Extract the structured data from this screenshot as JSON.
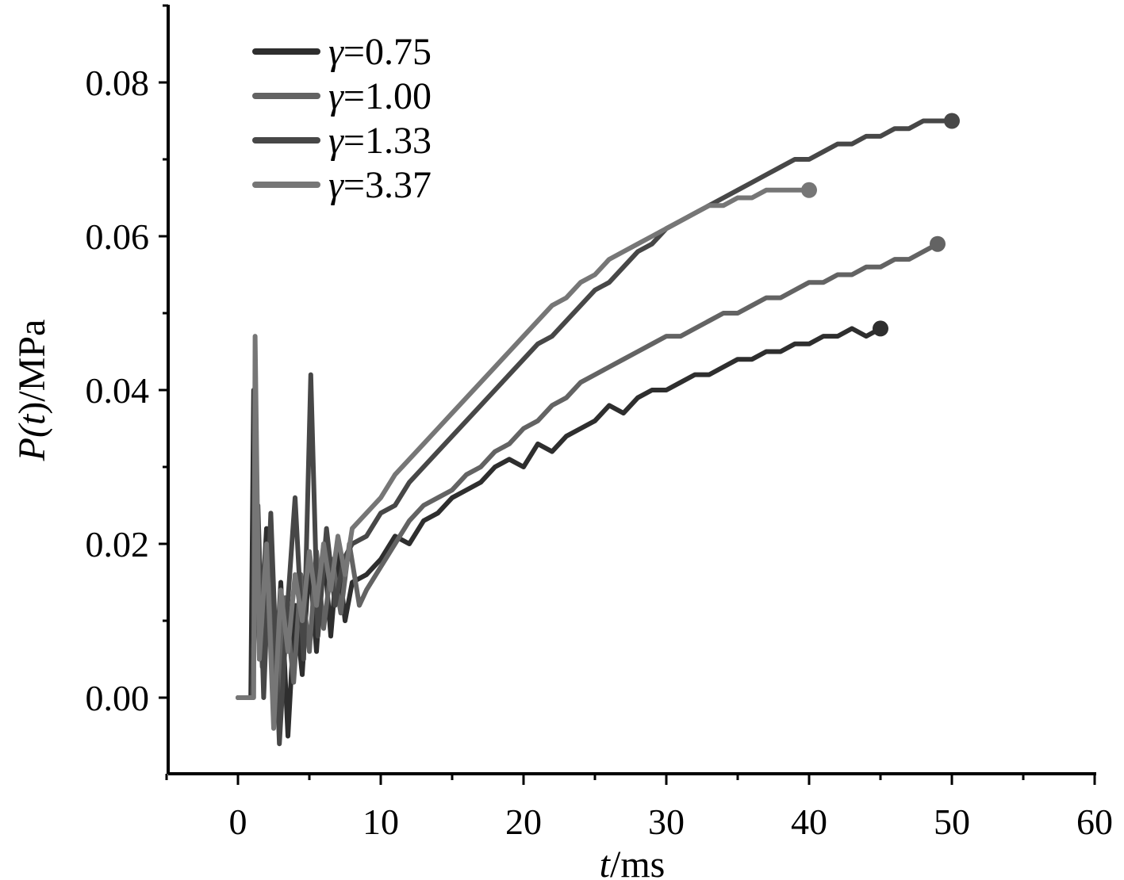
{
  "chart_data": {
    "type": "line",
    "title": "",
    "xlabel": {
      "var": "t",
      "unit": "/ms"
    },
    "ylabel": {
      "prefix": "P(",
      "var": "t",
      "suffix": ")/MPa"
    },
    "xlim": [
      -5,
      60
    ],
    "ylim": [
      -0.01,
      0.09
    ],
    "x_ticks": [
      0,
      10,
      20,
      30,
      40,
      50,
      60
    ],
    "x_tick_labels": [
      "0",
      "10",
      "20",
      "30",
      "40",
      "50",
      "60"
    ],
    "y_ticks": [
      0.0,
      0.02,
      0.04,
      0.06,
      0.08
    ],
    "y_tick_labels": [
      "0.00",
      "0.02",
      "0.04",
      "0.06",
      "0.08"
    ],
    "legend_position": "top-left",
    "grid": false,
    "series": [
      {
        "name": "γ=0.75",
        "symbol": "γ",
        "value": "=0.75",
        "color": "#2e2e2e",
        "x": [
          0,
          0.9,
          1.1,
          1.5,
          2,
          2.5,
          3,
          3.5,
          4,
          4.5,
          5,
          5.5,
          6,
          6.5,
          7,
          7.5,
          8,
          9,
          10,
          11,
          12,
          13,
          14,
          15,
          16,
          17,
          18,
          19,
          20,
          21,
          22,
          23,
          24,
          25,
          26,
          27,
          28,
          29,
          30,
          31,
          32,
          33,
          34,
          35,
          36,
          37,
          38,
          39,
          40,
          41,
          42,
          43,
          44,
          45
        ],
        "y": [
          0,
          0,
          0.04,
          0.005,
          0.022,
          -0.002,
          0.015,
          -0.005,
          0.012,
          0.003,
          0.018,
          0.006,
          0.02,
          0.008,
          0.019,
          0.01,
          0.015,
          0.016,
          0.018,
          0.021,
          0.02,
          0.023,
          0.024,
          0.026,
          0.027,
          0.028,
          0.03,
          0.031,
          0.03,
          0.033,
          0.032,
          0.034,
          0.035,
          0.036,
          0.038,
          0.037,
          0.039,
          0.04,
          0.04,
          0.041,
          0.042,
          0.042,
          0.043,
          0.044,
          0.044,
          0.045,
          0.045,
          0.046,
          0.046,
          0.047,
          0.047,
          0.048,
          0.047,
          0.048
        ]
      },
      {
        "name": "γ=1.00",
        "symbol": "γ",
        "value": "=1.00",
        "color": "#636363",
        "x": [
          0,
          1,
          1.3,
          1.7,
          2.2,
          2.8,
          3.3,
          3.9,
          4.4,
          5,
          5.5,
          6,
          6.6,
          7.2,
          7.8,
          8.5,
          9,
          10,
          11,
          12,
          13,
          14,
          15,
          16,
          17,
          18,
          19,
          20,
          21,
          22,
          23,
          24,
          25,
          26,
          27,
          28,
          29,
          30,
          31,
          32,
          33,
          34,
          35,
          36,
          37,
          38,
          39,
          40,
          41,
          42,
          43,
          44,
          45,
          46,
          47,
          48,
          49
        ],
        "y": [
          0,
          0,
          0.02,
          0.004,
          0.017,
          -0.003,
          0.013,
          0.002,
          0.016,
          0.006,
          0.019,
          0.009,
          0.018,
          0.011,
          0.02,
          0.012,
          0.014,
          0.017,
          0.02,
          0.023,
          0.025,
          0.026,
          0.027,
          0.029,
          0.03,
          0.032,
          0.033,
          0.035,
          0.036,
          0.038,
          0.039,
          0.041,
          0.042,
          0.043,
          0.044,
          0.045,
          0.046,
          0.047,
          0.047,
          0.048,
          0.049,
          0.05,
          0.05,
          0.051,
          0.052,
          0.052,
          0.053,
          0.054,
          0.054,
          0.055,
          0.055,
          0.056,
          0.056,
          0.057,
          0.057,
          0.058,
          0.059
        ]
      },
      {
        "name": "γ=1.33",
        "symbol": "γ",
        "value": "=1.33",
        "color": "#474747",
        "x": [
          0,
          1,
          1.4,
          1.8,
          2.3,
          2.9,
          3.4,
          4,
          4.6,
          5.1,
          5.6,
          6.2,
          6.8,
          7.4,
          8,
          9,
          10,
          11,
          12,
          13,
          14,
          15,
          16,
          17,
          18,
          19,
          20,
          21,
          22,
          23,
          24,
          25,
          26,
          27,
          28,
          29,
          30,
          31,
          32,
          33,
          34,
          35,
          36,
          37,
          38,
          39,
          40,
          41,
          42,
          43,
          44,
          45,
          46,
          47,
          48,
          49,
          50
        ],
        "y": [
          0,
          0,
          0.025,
          0.0,
          0.024,
          -0.006,
          0.01,
          0.026,
          0.005,
          0.042,
          0.008,
          0.022,
          0.012,
          0.018,
          0.02,
          0.021,
          0.024,
          0.025,
          0.028,
          0.03,
          0.032,
          0.034,
          0.036,
          0.038,
          0.04,
          0.042,
          0.044,
          0.046,
          0.047,
          0.049,
          0.051,
          0.053,
          0.054,
          0.056,
          0.058,
          0.059,
          0.061,
          0.062,
          0.063,
          0.064,
          0.065,
          0.066,
          0.067,
          0.068,
          0.069,
          0.07,
          0.07,
          0.071,
          0.072,
          0.072,
          0.073,
          0.073,
          0.074,
          0.074,
          0.075,
          0.075,
          0.075
        ]
      },
      {
        "name": "γ=3.37",
        "symbol": "γ",
        "value": "=3.37",
        "color": "#767676",
        "x": [
          0,
          1.1,
          1.2,
          1.5,
          2,
          2.5,
          3,
          3.5,
          4,
          4.5,
          5,
          5.5,
          6,
          6.5,
          7,
          7.5,
          8,
          9,
          10,
          11,
          12,
          13,
          14,
          15,
          16,
          17,
          18,
          19,
          20,
          21,
          22,
          23,
          24,
          25,
          26,
          27,
          28,
          29,
          30,
          31,
          32,
          33,
          34,
          35,
          36,
          37,
          38,
          39,
          40
        ],
        "y": [
          0,
          0,
          0.047,
          0.005,
          0.02,
          -0.004,
          0.014,
          0.006,
          0.016,
          0.01,
          0.019,
          0.012,
          0.02,
          0.014,
          0.021,
          0.016,
          0.022,
          0.024,
          0.026,
          0.029,
          0.031,
          0.033,
          0.035,
          0.037,
          0.039,
          0.041,
          0.043,
          0.045,
          0.047,
          0.049,
          0.051,
          0.052,
          0.054,
          0.055,
          0.057,
          0.058,
          0.059,
          0.06,
          0.061,
          0.062,
          0.063,
          0.064,
          0.064,
          0.065,
          0.065,
          0.066,
          0.066,
          0.066,
          0.066
        ]
      }
    ]
  }
}
